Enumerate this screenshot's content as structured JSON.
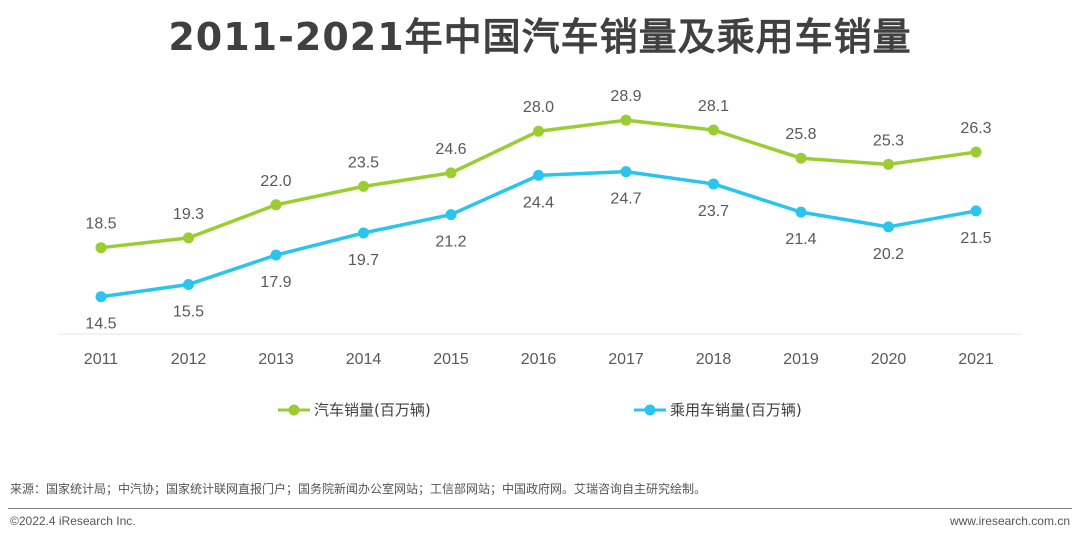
{
  "chart_data": {
    "type": "line",
    "title": "2011-2021年中国汽车销量及乘用车销量",
    "categories": [
      "2011",
      "2012",
      "2013",
      "2014",
      "2015",
      "2016",
      "2017",
      "2018",
      "2019",
      "2020",
      "2021"
    ],
    "series": [
      {
        "name": "汽车销量(百万辆)",
        "color": "#9ACD32",
        "values": [
          18.5,
          19.3,
          22.0,
          23.5,
          24.6,
          28.0,
          28.9,
          28.1,
          25.8,
          25.3,
          26.3
        ],
        "labels": [
          "18.5",
          "19.3",
          "22.0",
          "23.5",
          "24.6",
          "28.0",
          "28.9",
          "28.1",
          "25.8",
          "25.3",
          "26.3"
        ]
      },
      {
        "name": "乘用车销量(百万辆)",
        "color": "#29C5EE",
        "values": [
          14.5,
          15.5,
          17.9,
          19.7,
          21.2,
          24.4,
          24.7,
          23.7,
          21.4,
          20.2,
          21.5
        ],
        "labels": [
          "14.5",
          "15.5",
          "17.9",
          "19.7",
          "21.2",
          "24.4",
          "24.7",
          "23.7",
          "21.4",
          "20.2",
          "21.5"
        ]
      }
    ],
    "grid": false,
    "legend_position": "bottom"
  },
  "footer": {
    "source": "来源：国家统计局；中汽协；国家统计联网直报门户；国务院新闻办公室网站；工信部网站；中国政府网。艾瑞咨询自主研究绘制。",
    "copyright": "©2022.4 iResearch Inc.",
    "website": "www.iresearch.com.cn"
  }
}
